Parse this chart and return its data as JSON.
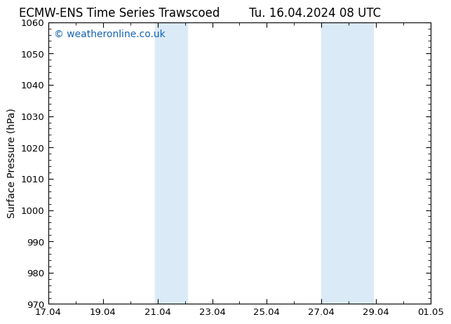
{
  "title_left": "ECMW-ENS Time Series Trawscoed",
  "title_right": "Tu. 16.04.2024 08 UTC",
  "ylabel": "Surface Pressure (hPa)",
  "ylim": [
    970,
    1060
  ],
  "yticks": [
    970,
    980,
    990,
    1000,
    1010,
    1020,
    1030,
    1040,
    1050,
    1060
  ],
  "xtick_labels": [
    "17.04",
    "19.04",
    "21.04",
    "23.04",
    "25.04",
    "27.04",
    "29.04",
    "01.05"
  ],
  "xtick_positions": [
    0,
    2,
    4,
    6,
    8,
    10,
    12,
    14
  ],
  "x_min": 0,
  "x_max": 14,
  "shade_regions": [
    {
      "x_start": 3.9,
      "x_end": 5.1
    },
    {
      "x_start": 10.0,
      "x_end": 11.9
    }
  ],
  "shade_color": "#daeaf7",
  "bg_color": "#ffffff",
  "plot_bg_color": "#ffffff",
  "watermark": "© weatheronline.co.uk",
  "watermark_color": "#1464b4",
  "title_fontsize": 12,
  "axis_label_fontsize": 10,
  "tick_fontsize": 9.5,
  "watermark_fontsize": 10
}
